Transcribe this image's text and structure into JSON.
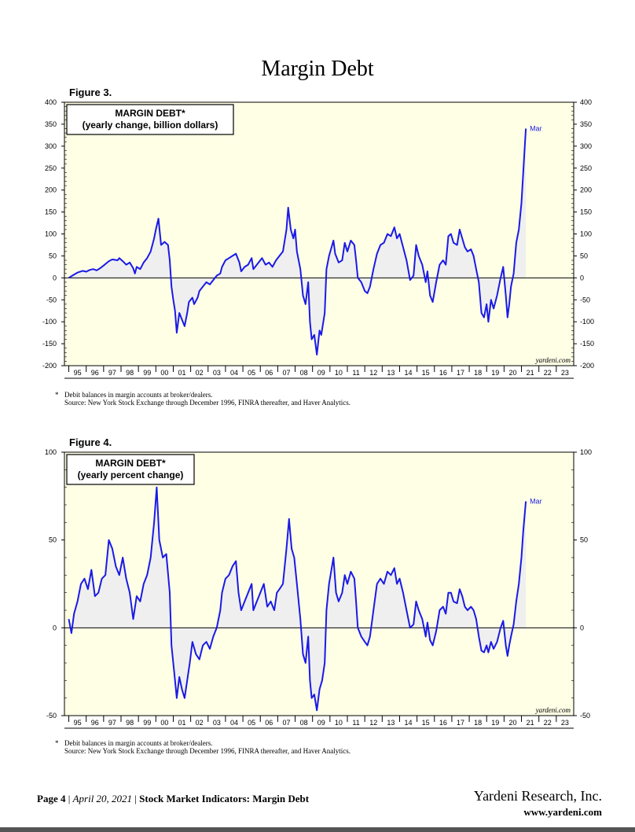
{
  "page": {
    "title": "Margin Debt",
    "footer_page": "Page 4",
    "footer_date": "April 20, 2021",
    "footer_sep": "|",
    "footer_doc": "Stock Market Indicators: Margin Debt",
    "company": "Yardeni Research, Inc.",
    "company_url": "www.yardeni.com"
  },
  "colors": {
    "line": "#1a1ae6",
    "plot_bg": "#ffffe6",
    "fill": "#efefef",
    "zero": "#000000"
  },
  "chart_data": [
    {
      "figure_label": "Figure 3.",
      "type": "line",
      "title": "MARGIN DEBT*",
      "subtitle": "(yearly change, billion dollars)",
      "ylim": [
        -200,
        400
      ],
      "yticks": [
        -200,
        -150,
        -100,
        -50,
        0,
        50,
        100,
        150,
        200,
        250,
        300,
        350,
        400
      ],
      "x_range": [
        1994.75,
        2024.0
      ],
      "x_tick_labels": [
        "95",
        "96",
        "97",
        "98",
        "99",
        "00",
        "01",
        "02",
        "03",
        "04",
        "05",
        "06",
        "07",
        "08",
        "09",
        "10",
        "11",
        "12",
        "13",
        "14",
        "15",
        "16",
        "17",
        "18",
        "19",
        "20",
        "21",
        "22",
        "23"
      ],
      "last_label": "Mar",
      "watermark": "yardeni.com",
      "footnote": "Debit balances in margin accounts at broker/dealers.",
      "source": "Source: New York Stock Exchange through December 1996, FINRA thereafter, and Haver Analytics.",
      "footnote_marker": "*",
      "points": [
        [
          1995.0,
          0
        ],
        [
          1995.2,
          5
        ],
        [
          1995.5,
          12
        ],
        [
          1995.8,
          16
        ],
        [
          1996.0,
          14
        ],
        [
          1996.2,
          18
        ],
        [
          1996.4,
          20
        ],
        [
          1996.6,
          17
        ],
        [
          1996.8,
          22
        ],
        [
          1997.0,
          28
        ],
        [
          1997.3,
          38
        ],
        [
          1997.5,
          42
        ],
        [
          1997.8,
          40
        ],
        [
          1997.9,
          45
        ],
        [
          1998.1,
          38
        ],
        [
          1998.3,
          30
        ],
        [
          1998.5,
          35
        ],
        [
          1998.7,
          22
        ],
        [
          1998.8,
          10
        ],
        [
          1998.9,
          25
        ],
        [
          1999.1,
          20
        ],
        [
          1999.3,
          35
        ],
        [
          1999.5,
          45
        ],
        [
          1999.7,
          60
        ],
        [
          1999.9,
          90
        ],
        [
          2000.0,
          110
        ],
        [
          2000.15,
          135
        ],
        [
          2000.3,
          75
        ],
        [
          2000.5,
          82
        ],
        [
          2000.7,
          75
        ],
        [
          2000.8,
          40
        ],
        [
          2000.9,
          -20
        ],
        [
          2001.0,
          -50
        ],
        [
          2001.1,
          -75
        ],
        [
          2001.2,
          -125
        ],
        [
          2001.35,
          -80
        ],
        [
          2001.5,
          -95
        ],
        [
          2001.65,
          -110
        ],
        [
          2001.8,
          -80
        ],
        [
          2001.9,
          -55
        ],
        [
          2002.1,
          -45
        ],
        [
          2002.2,
          -60
        ],
        [
          2002.4,
          -45
        ],
        [
          2002.5,
          -30
        ],
        [
          2002.7,
          -20
        ],
        [
          2002.9,
          -10
        ],
        [
          2003.1,
          -15
        ],
        [
          2003.3,
          -5
        ],
        [
          2003.5,
          5
        ],
        [
          2003.7,
          10
        ],
        [
          2003.8,
          25
        ],
        [
          2004.0,
          40
        ],
        [
          2004.2,
          45
        ],
        [
          2004.4,
          50
        ],
        [
          2004.6,
          55
        ],
        [
          2004.8,
          35
        ],
        [
          2004.9,
          15
        ],
        [
          2005.1,
          25
        ],
        [
          2005.3,
          30
        ],
        [
          2005.5,
          45
        ],
        [
          2005.6,
          20
        ],
        [
          2005.8,
          30
        ],
        [
          2006.0,
          40
        ],
        [
          2006.1,
          45
        ],
        [
          2006.3,
          30
        ],
        [
          2006.5,
          35
        ],
        [
          2006.7,
          25
        ],
        [
          2006.9,
          40
        ],
        [
          2007.1,
          50
        ],
        [
          2007.3,
          60
        ],
        [
          2007.5,
          110
        ],
        [
          2007.6,
          160
        ],
        [
          2007.75,
          110
        ],
        [
          2007.9,
          90
        ],
        [
          2008.0,
          110
        ],
        [
          2008.1,
          60
        ],
        [
          2008.3,
          20
        ],
        [
          2008.45,
          -40
        ],
        [
          2008.6,
          -60
        ],
        [
          2008.75,
          -10
        ],
        [
          2008.85,
          -100
        ],
        [
          2008.95,
          -140
        ],
        [
          2009.1,
          -130
        ],
        [
          2009.25,
          -175
        ],
        [
          2009.4,
          -120
        ],
        [
          2009.5,
          -130
        ],
        [
          2009.7,
          -80
        ],
        [
          2009.8,
          20
        ],
        [
          2009.95,
          50
        ],
        [
          2010.2,
          85
        ],
        [
          2010.3,
          55
        ],
        [
          2010.5,
          35
        ],
        [
          2010.7,
          40
        ],
        [
          2010.85,
          80
        ],
        [
          2011.0,
          60
        ],
        [
          2011.2,
          85
        ],
        [
          2011.4,
          75
        ],
        [
          2011.5,
          40
        ],
        [
          2011.6,
          0
        ],
        [
          2011.8,
          -10
        ],
        [
          2012.0,
          -30
        ],
        [
          2012.15,
          -35
        ],
        [
          2012.3,
          -20
        ],
        [
          2012.5,
          20
        ],
        [
          2012.7,
          55
        ],
        [
          2012.9,
          75
        ],
        [
          2013.1,
          80
        ],
        [
          2013.3,
          100
        ],
        [
          2013.5,
          95
        ],
        [
          2013.7,
          115
        ],
        [
          2013.85,
          90
        ],
        [
          2014.0,
          100
        ],
        [
          2014.2,
          70
        ],
        [
          2014.4,
          40
        ],
        [
          2014.6,
          -5
        ],
        [
          2014.8,
          5
        ],
        [
          2014.95,
          75
        ],
        [
          2015.1,
          50
        ],
        [
          2015.3,
          30
        ],
        [
          2015.5,
          -10
        ],
        [
          2015.6,
          15
        ],
        [
          2015.75,
          -40
        ],
        [
          2015.9,
          -55
        ],
        [
          2016.1,
          -10
        ],
        [
          2016.3,
          30
        ],
        [
          2016.5,
          40
        ],
        [
          2016.65,
          30
        ],
        [
          2016.8,
          95
        ],
        [
          2016.95,
          100
        ],
        [
          2017.1,
          80
        ],
        [
          2017.3,
          75
        ],
        [
          2017.45,
          110
        ],
        [
          2017.6,
          90
        ],
        [
          2017.75,
          70
        ],
        [
          2017.9,
          60
        ],
        [
          2018.1,
          65
        ],
        [
          2018.25,
          50
        ],
        [
          2018.4,
          20
        ],
        [
          2018.55,
          -10
        ],
        [
          2018.7,
          -80
        ],
        [
          2018.85,
          -90
        ],
        [
          2019.0,
          -60
        ],
        [
          2019.1,
          -100
        ],
        [
          2019.25,
          -50
        ],
        [
          2019.4,
          -70
        ],
        [
          2019.6,
          -40
        ],
        [
          2019.8,
          0
        ],
        [
          2019.95,
          25
        ],
        [
          2020.1,
          -40
        ],
        [
          2020.2,
          -90
        ],
        [
          2020.3,
          -60
        ],
        [
          2020.4,
          -20
        ],
        [
          2020.55,
          10
        ],
        [
          2020.7,
          80
        ],
        [
          2020.85,
          110
        ],
        [
          2021.0,
          170
        ],
        [
          2021.1,
          240
        ],
        [
          2021.25,
          340
        ]
      ]
    },
    {
      "figure_label": "Figure 4.",
      "type": "line",
      "title": "MARGIN DEBT*",
      "subtitle": "(yearly percent change)",
      "ylim": [
        -50,
        100
      ],
      "yticks": [
        -50,
        0,
        50,
        100
      ],
      "x_range": [
        1994.75,
        2024.0
      ],
      "x_tick_labels": [
        "95",
        "96",
        "97",
        "98",
        "99",
        "00",
        "01",
        "02",
        "03",
        "04",
        "05",
        "06",
        "07",
        "08",
        "09",
        "10",
        "11",
        "12",
        "13",
        "14",
        "15",
        "16",
        "17",
        "18",
        "19",
        "20",
        "21",
        "22",
        "23"
      ],
      "last_label": "Mar",
      "watermark": "yardeni.com",
      "footnote": "Debit balances in margin accounts at broker/dealers.",
      "source": "Source: New York Stock Exchange through December 1996, FINRA thereafter, and Haver Analytics.",
      "footnote_marker": "*",
      "points": [
        [
          1995.0,
          5
        ],
        [
          1995.15,
          -3
        ],
        [
          1995.3,
          8
        ],
        [
          1995.5,
          15
        ],
        [
          1995.7,
          25
        ],
        [
          1995.9,
          28
        ],
        [
          1996.1,
          22
        ],
        [
          1996.3,
          33
        ],
        [
          1996.5,
          18
        ],
        [
          1996.7,
          20
        ],
        [
          1996.9,
          28
        ],
        [
          1997.1,
          30
        ],
        [
          1997.3,
          50
        ],
        [
          1997.5,
          45
        ],
        [
          1997.7,
          35
        ],
        [
          1997.9,
          30
        ],
        [
          1998.1,
          40
        ],
        [
          1998.3,
          28
        ],
        [
          1998.5,
          20
        ],
        [
          1998.7,
          5
        ],
        [
          1998.9,
          18
        ],
        [
          1999.1,
          15
        ],
        [
          1999.3,
          25
        ],
        [
          1999.5,
          30
        ],
        [
          1999.7,
          40
        ],
        [
          1999.9,
          60
        ],
        [
          2000.05,
          80
        ],
        [
          2000.2,
          50
        ],
        [
          2000.4,
          40
        ],
        [
          2000.6,
          42
        ],
        [
          2000.8,
          20
        ],
        [
          2000.9,
          -10
        ],
        [
          2001.05,
          -25
        ],
        [
          2001.2,
          -40
        ],
        [
          2001.35,
          -28
        ],
        [
          2001.5,
          -35
        ],
        [
          2001.65,
          -40
        ],
        [
          2001.8,
          -30
        ],
        [
          2001.95,
          -20
        ],
        [
          2002.1,
          -8
        ],
        [
          2002.3,
          -15
        ],
        [
          2002.5,
          -18
        ],
        [
          2002.7,
          -10
        ],
        [
          2002.9,
          -8
        ],
        [
          2003.1,
          -12
        ],
        [
          2003.3,
          -5
        ],
        [
          2003.5,
          0
        ],
        [
          2003.7,
          10
        ],
        [
          2003.8,
          20
        ],
        [
          2004.0,
          28
        ],
        [
          2004.2,
          30
        ],
        [
          2004.4,
          35
        ],
        [
          2004.6,
          38
        ],
        [
          2004.75,
          20
        ],
        [
          2004.9,
          10
        ],
        [
          2005.1,
          15
        ],
        [
          2005.3,
          20
        ],
        [
          2005.5,
          25
        ],
        [
          2005.6,
          10
        ],
        [
          2005.8,
          15
        ],
        [
          2006.0,
          20
        ],
        [
          2006.2,
          25
        ],
        [
          2006.4,
          12
        ],
        [
          2006.6,
          15
        ],
        [
          2006.8,
          10
        ],
        [
          2006.95,
          20
        ],
        [
          2007.1,
          22
        ],
        [
          2007.3,
          25
        ],
        [
          2007.5,
          45
        ],
        [
          2007.65,
          62
        ],
        [
          2007.8,
          45
        ],
        [
          2007.95,
          40
        ],
        [
          2008.1,
          25
        ],
        [
          2008.3,
          5
        ],
        [
          2008.45,
          -15
        ],
        [
          2008.6,
          -20
        ],
        [
          2008.75,
          -5
        ],
        [
          2008.85,
          -30
        ],
        [
          2008.95,
          -40
        ],
        [
          2009.1,
          -38
        ],
        [
          2009.25,
          -47
        ],
        [
          2009.4,
          -35
        ],
        [
          2009.55,
          -30
        ],
        [
          2009.7,
          -20
        ],
        [
          2009.8,
          10
        ],
        [
          2009.95,
          25
        ],
        [
          2010.2,
          40
        ],
        [
          2010.35,
          20
        ],
        [
          2010.5,
          15
        ],
        [
          2010.7,
          20
        ],
        [
          2010.85,
          30
        ],
        [
          2011.0,
          25
        ],
        [
          2011.2,
          32
        ],
        [
          2011.4,
          28
        ],
        [
          2011.5,
          15
        ],
        [
          2011.6,
          0
        ],
        [
          2011.8,
          -5
        ],
        [
          2012.0,
          -8
        ],
        [
          2012.15,
          -10
        ],
        [
          2012.3,
          -5
        ],
        [
          2012.5,
          10
        ],
        [
          2012.7,
          25
        ],
        [
          2012.9,
          28
        ],
        [
          2013.1,
          25
        ],
        [
          2013.3,
          32
        ],
        [
          2013.5,
          30
        ],
        [
          2013.7,
          34
        ],
        [
          2013.85,
          25
        ],
        [
          2014.0,
          28
        ],
        [
          2014.2,
          20
        ],
        [
          2014.4,
          10
        ],
        [
          2014.6,
          0
        ],
        [
          2014.8,
          2
        ],
        [
          2014.95,
          15
        ],
        [
          2015.1,
          10
        ],
        [
          2015.3,
          5
        ],
        [
          2015.5,
          -5
        ],
        [
          2015.6,
          3
        ],
        [
          2015.75,
          -7
        ],
        [
          2015.9,
          -10
        ],
        [
          2016.1,
          -2
        ],
        [
          2016.3,
          10
        ],
        [
          2016.5,
          12
        ],
        [
          2016.65,
          8
        ],
        [
          2016.8,
          20
        ],
        [
          2016.95,
          20
        ],
        [
          2017.1,
          15
        ],
        [
          2017.3,
          14
        ],
        [
          2017.45,
          22
        ],
        [
          2017.6,
          18
        ],
        [
          2017.75,
          12
        ],
        [
          2017.9,
          10
        ],
        [
          2018.1,
          12
        ],
        [
          2018.25,
          10
        ],
        [
          2018.4,
          5
        ],
        [
          2018.55,
          -5
        ],
        [
          2018.7,
          -13
        ],
        [
          2018.85,
          -14
        ],
        [
          2019.0,
          -10
        ],
        [
          2019.1,
          -14
        ],
        [
          2019.25,
          -8
        ],
        [
          2019.4,
          -12
        ],
        [
          2019.6,
          -8
        ],
        [
          2019.8,
          0
        ],
        [
          2019.95,
          4
        ],
        [
          2020.1,
          -10
        ],
        [
          2020.2,
          -16
        ],
        [
          2020.3,
          -10
        ],
        [
          2020.4,
          -5
        ],
        [
          2020.55,
          2
        ],
        [
          2020.7,
          15
        ],
        [
          2020.85,
          25
        ],
        [
          2021.0,
          40
        ],
        [
          2021.1,
          55
        ],
        [
          2021.25,
          72
        ]
      ]
    }
  ]
}
